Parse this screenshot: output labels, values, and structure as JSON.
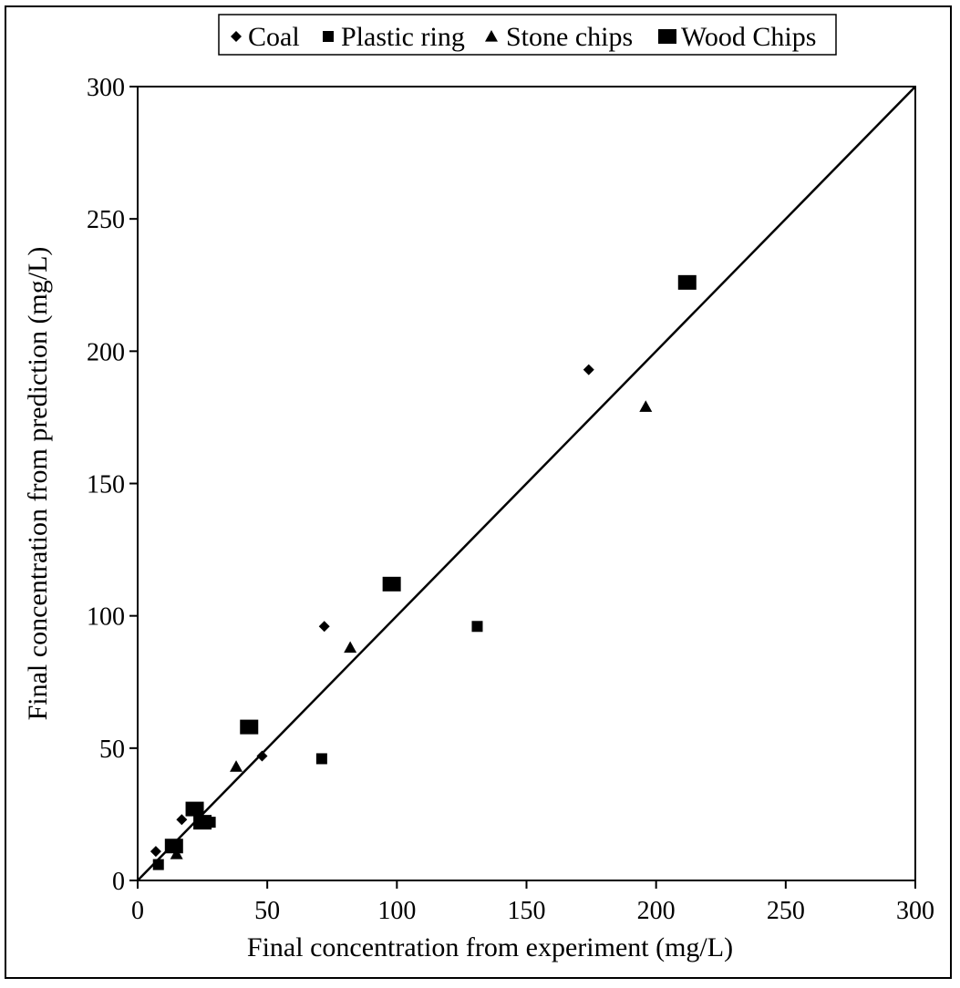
{
  "chart_data": {
    "type": "scatter",
    "title": "",
    "xlabel": "Final concentration from experiment (mg/L)",
    "ylabel": "Final concentration from prediction (mg/L)",
    "xlim": [
      0,
      300
    ],
    "ylim": [
      0,
      300
    ],
    "xticks": [
      "0",
      "50",
      "100",
      "150",
      "200",
      "250",
      "300"
    ],
    "yticks": [
      "0",
      "50",
      "100",
      "150",
      "200",
      "250",
      "300"
    ],
    "grid": false,
    "legend_position": "top-center",
    "reference_line": {
      "from": [
        0,
        0
      ],
      "to": [
        300,
        300
      ]
    },
    "series": [
      {
        "name": "Coal",
        "marker": "diamond",
        "color": "#000000",
        "points": [
          [
            7,
            11
          ],
          [
            17,
            23
          ],
          [
            48,
            47
          ],
          [
            72,
            96
          ],
          [
            174,
            193
          ]
        ]
      },
      {
        "name": "Plastic ring",
        "marker": "square",
        "color": "#000000",
        "points": [
          [
            8,
            6
          ],
          [
            28,
            22
          ],
          [
            71,
            46
          ],
          [
            131,
            96
          ]
        ]
      },
      {
        "name": "Stone chips",
        "marker": "triangle",
        "color": "#000000",
        "points": [
          [
            15,
            10
          ],
          [
            38,
            43
          ],
          [
            82,
            88
          ],
          [
            196,
            179
          ]
        ]
      },
      {
        "name": "Wood Chips",
        "marker": "square-large",
        "color": "#000000",
        "points": [
          [
            14,
            13
          ],
          [
            22,
            27
          ],
          [
            25,
            22
          ],
          [
            43,
            58
          ],
          [
            98,
            112
          ],
          [
            212,
            226
          ]
        ]
      }
    ]
  }
}
